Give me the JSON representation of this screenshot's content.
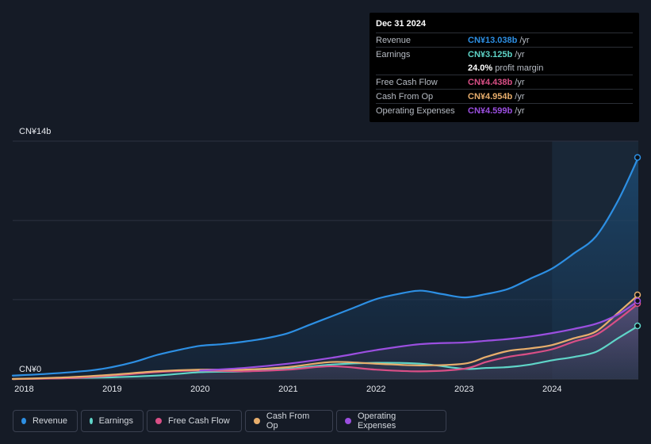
{
  "chart_data": {
    "type": "area",
    "currency": "CN¥",
    "y_top_label": "CN¥14b",
    "y_bottom_label": "CN¥0",
    "ylim": [
      0,
      14
    ],
    "xlim": [
      2017.87,
      2024.98
    ],
    "x_ticks": [
      "2018",
      "2019",
      "2020",
      "2021",
      "2022",
      "2023",
      "2024"
    ],
    "highlight_start": 2024.0,
    "series": [
      {
        "key": "revenue",
        "name": "Revenue",
        "color": "#2d8fe3",
        "x": [
          2017.87,
          2018.25,
          2018.75,
          2019.0,
          2019.25,
          2019.5,
          2019.75,
          2020.0,
          2020.25,
          2020.5,
          2020.75,
          2021.0,
          2021.25,
          2021.5,
          2021.75,
          2022.0,
          2022.25,
          2022.5,
          2022.75,
          2023.0,
          2023.25,
          2023.5,
          2023.75,
          2024.0,
          2024.25,
          2024.5,
          2024.75,
          2024.98
        ],
        "values": [
          0.2,
          0.3,
          0.5,
          0.7,
          1.0,
          1.4,
          1.7,
          1.95,
          2.05,
          2.2,
          2.4,
          2.7,
          3.2,
          3.7,
          4.2,
          4.7,
          5.0,
          5.2,
          5.0,
          4.8,
          5.0,
          5.3,
          5.9,
          6.5,
          7.4,
          8.4,
          10.5,
          13.038
        ]
      },
      {
        "key": "earnings",
        "name": "Earnings",
        "color": "#5fd5c8",
        "x": [
          2017.87,
          2018.5,
          2019.0,
          2019.5,
          2020.0,
          2020.5,
          2021.0,
          2021.5,
          2022.0,
          2022.5,
          2023.0,
          2023.25,
          2023.5,
          2023.75,
          2024.0,
          2024.25,
          2024.5,
          2024.75,
          2024.98
        ],
        "values": [
          0.0,
          0.05,
          0.1,
          0.2,
          0.4,
          0.45,
          0.6,
          0.85,
          0.95,
          0.9,
          0.6,
          0.65,
          0.7,
          0.85,
          1.1,
          1.3,
          1.6,
          2.4,
          3.125
        ]
      },
      {
        "key": "fcf",
        "name": "Free Cash Flow",
        "color": "#d94f86",
        "x": [
          2017.87,
          2018.5,
          2019.0,
          2019.5,
          2020.0,
          2020.5,
          2021.0,
          2021.5,
          2022.0,
          2022.5,
          2023.0,
          2023.25,
          2023.5,
          2023.75,
          2024.0,
          2024.25,
          2024.5,
          2024.75,
          2024.98
        ],
        "values": [
          0.0,
          0.05,
          0.2,
          0.4,
          0.5,
          0.45,
          0.55,
          0.75,
          0.55,
          0.45,
          0.6,
          1.0,
          1.3,
          1.5,
          1.75,
          2.2,
          2.6,
          3.5,
          4.438
        ]
      },
      {
        "key": "cfo",
        "name": "Cash From Op",
        "color": "#e8ae6c",
        "x": [
          2017.87,
          2018.5,
          2019.0,
          2019.5,
          2020.0,
          2020.5,
          2021.0,
          2021.5,
          2022.0,
          2022.5,
          2023.0,
          2023.25,
          2023.5,
          2023.75,
          2024.0,
          2024.25,
          2024.5,
          2024.75,
          2024.98
        ],
        "values": [
          0.0,
          0.1,
          0.25,
          0.45,
          0.55,
          0.55,
          0.7,
          1.0,
          0.9,
          0.8,
          0.9,
          1.3,
          1.65,
          1.8,
          2.0,
          2.4,
          2.8,
          3.9,
          4.954
        ]
      },
      {
        "key": "opex",
        "name": "Operating Expenses",
        "color": "#9b4fe0",
        "x": [
          2020.0,
          2020.5,
          2021.0,
          2021.5,
          2022.0,
          2022.5,
          2023.0,
          2023.25,
          2023.5,
          2023.75,
          2024.0,
          2024.25,
          2024.5,
          2024.75,
          2024.98
        ],
        "values": [
          0.5,
          0.65,
          0.9,
          1.25,
          1.7,
          2.05,
          2.15,
          2.25,
          2.35,
          2.5,
          2.7,
          2.95,
          3.25,
          3.8,
          4.599
        ]
      }
    ]
  },
  "tooltip": {
    "date": "Dec 31 2024",
    "rows": [
      {
        "label": "Revenue",
        "value": "CN¥13.038b",
        "unit": "/yr",
        "color": "#2d8fe3"
      },
      {
        "label": "Earnings",
        "value": "CN¥3.125b",
        "unit": "/yr",
        "color": "#5fd5c8"
      },
      {
        "label": "",
        "value": "24.0%",
        "unit": "profit margin",
        "color": "#ffffff"
      },
      {
        "label": "Free Cash Flow",
        "value": "CN¥4.438b",
        "unit": "/yr",
        "color": "#d94f86"
      },
      {
        "label": "Cash From Op",
        "value": "CN¥4.954b",
        "unit": "/yr",
        "color": "#e8ae6c"
      },
      {
        "label": "Operating Expenses",
        "value": "CN¥4.599b",
        "unit": "/yr",
        "color": "#9b4fe0"
      }
    ]
  },
  "legend": [
    {
      "name": "Revenue",
      "color": "#2d8fe3"
    },
    {
      "name": "Earnings",
      "color": "#5fd5c8"
    },
    {
      "name": "Free Cash Flow",
      "color": "#d94f86"
    },
    {
      "name": "Cash From Op",
      "color": "#e8ae6c"
    },
    {
      "name": "Operating Expenses",
      "color": "#9b4fe0"
    }
  ]
}
